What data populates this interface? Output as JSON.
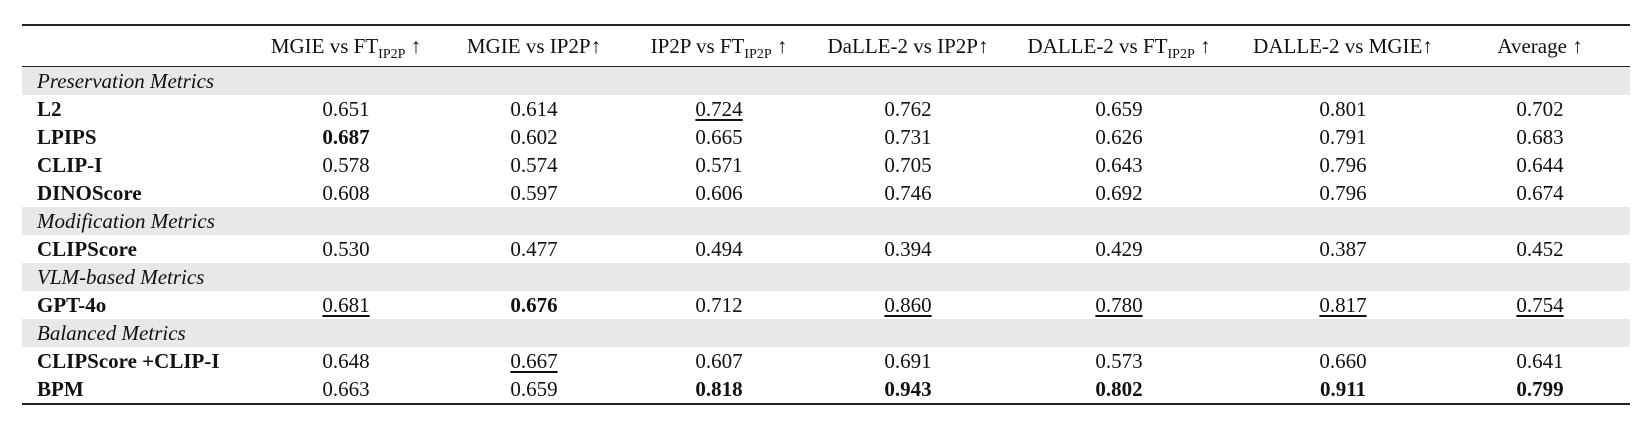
{
  "table": {
    "headers": [
      {
        "pre": "MGIE vs FT",
        "sub": "IP2P",
        "post": " ↑"
      },
      {
        "pre": "MGIE vs IP2P↑",
        "sub": "",
        "post": ""
      },
      {
        "pre": "IP2P vs FT",
        "sub": "IP2P",
        "post": " ↑"
      },
      {
        "pre": "DaLLE-2 vs IP2P↑",
        "sub": "",
        "post": ""
      },
      {
        "pre": "DALLE-2 vs FT",
        "sub": "IP2P",
        "post": " ↑"
      },
      {
        "pre": "DALLE-2 vs MGIE↑",
        "sub": "",
        "post": ""
      },
      {
        "pre": "Average ↑",
        "sub": "",
        "post": ""
      }
    ],
    "sections": [
      {
        "title": "Preservation Metrics",
        "rows": [
          {
            "metric": "L2",
            "values": [
              "0.651",
              "0.614",
              "0.724",
              "0.762",
              "0.659",
              "0.801",
              "0.702"
            ],
            "style": [
              "",
              "",
              "u",
              "",
              "",
              "",
              ""
            ]
          },
          {
            "metric": "LPIPS",
            "values": [
              "0.687",
              "0.602",
              "0.665",
              "0.731",
              "0.626",
              "0.791",
              "0.683"
            ],
            "style": [
              "b",
              "",
              "",
              "",
              "",
              "",
              ""
            ]
          },
          {
            "metric": "CLIP-I",
            "values": [
              "0.578",
              "0.574",
              "0.571",
              "0.705",
              "0.643",
              "0.796",
              "0.644"
            ],
            "style": [
              "",
              "",
              "",
              "",
              "",
              "",
              ""
            ]
          },
          {
            "metric": "DINOScore",
            "values": [
              "0.608",
              "0.597",
              "0.606",
              "0.746",
              "0.692",
              "0.796",
              "0.674"
            ],
            "style": [
              "",
              "",
              "",
              "",
              "",
              "",
              ""
            ]
          }
        ]
      },
      {
        "title": "Modification Metrics",
        "rows": [
          {
            "metric": "CLIPScore",
            "values": [
              "0.530",
              "0.477",
              "0.494",
              "0.394",
              "0.429",
              "0.387",
              "0.452"
            ],
            "style": [
              "",
              "",
              "",
              "",
              "",
              "",
              ""
            ]
          }
        ]
      },
      {
        "title": "VLM-based Metrics",
        "rows": [
          {
            "metric": "GPT-4o",
            "values": [
              "0.681",
              "0.676",
              "0.712",
              "0.860",
              "0.780",
              "0.817",
              "0.754"
            ],
            "style": [
              "u",
              "b",
              "",
              "u",
              "u",
              "u",
              "u"
            ]
          }
        ]
      },
      {
        "title": "Balanced Metrics",
        "rows": [
          {
            "metric": "CLIPScore +CLIP-I",
            "values": [
              "0.648",
              "0.667",
              "0.607",
              "0.691",
              "0.573",
              "0.660",
              "0.641"
            ],
            "style": [
              "",
              "u",
              "",
              "",
              "",
              "",
              ""
            ]
          },
          {
            "metric": "BPM",
            "values": [
              "0.663",
              "0.659",
              "0.818",
              "0.943",
              "0.802",
              "0.911",
              "0.799"
            ],
            "style": [
              "",
              "",
              "b",
              "b",
              "b",
              "b",
              "b"
            ]
          }
        ]
      }
    ]
  }
}
